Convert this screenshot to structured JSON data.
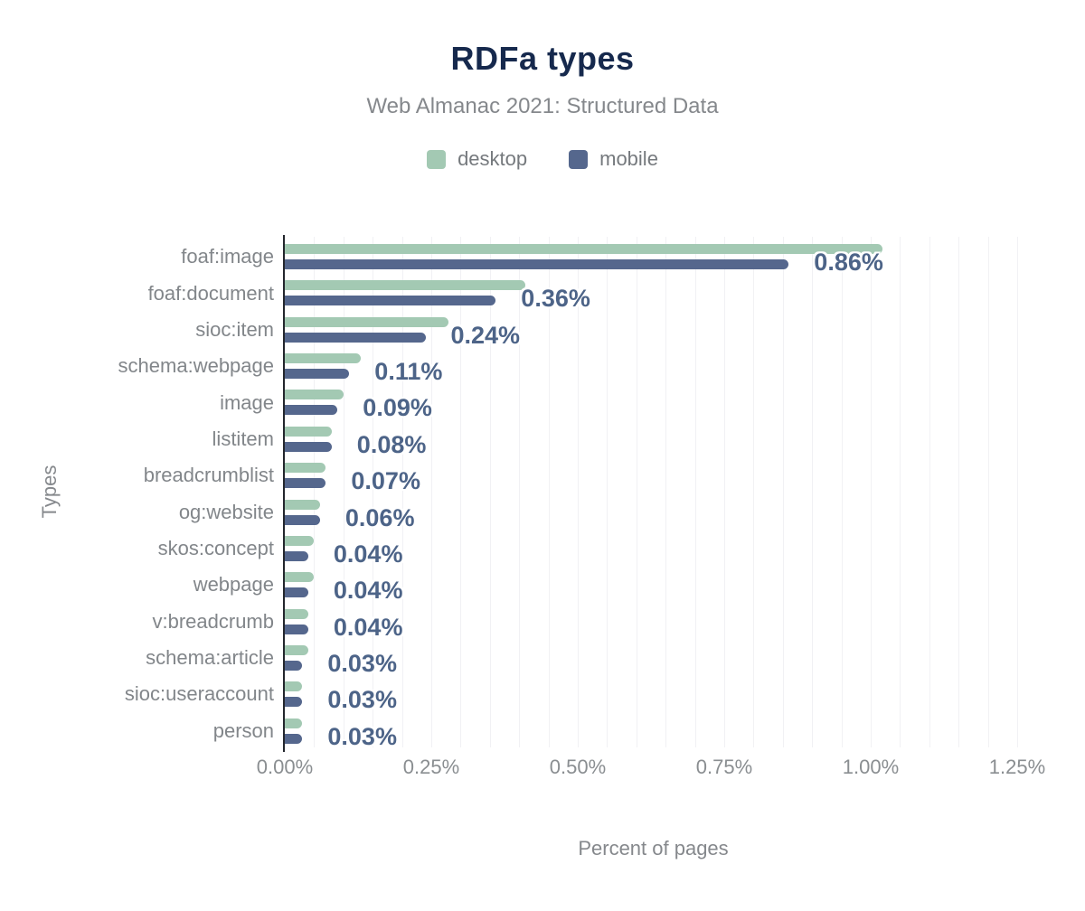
{
  "title": "RDFa types",
  "subtitle": "Web Almanac 2021: Structured Data",
  "legend": {
    "items": [
      {
        "name": "desktop-swatch",
        "label": "desktop",
        "color": "#a3c9b3"
      },
      {
        "name": "mobile-swatch",
        "label": "mobile",
        "color": "#55678d"
      }
    ]
  },
  "axes": {
    "x_title": "Percent of pages",
    "y_title": "Types"
  },
  "chart_data": {
    "type": "bar",
    "orientation": "horizontal",
    "title": "RDFa types",
    "subtitle": "Web Almanac 2021: Structured Data",
    "xlabel": "Percent of pages",
    "ylabel": "Types",
    "legend_position": "top",
    "grid": "vertical, minor step 0.05%",
    "categories": [
      "foaf:image",
      "foaf:document",
      "sioc:item",
      "schema:webpage",
      "image",
      "listitem",
      "breadcrumblist",
      "og:website",
      "skos:concept",
      "webpage",
      "v:breadcrumb",
      "schema:article",
      "sioc:useraccount",
      "person"
    ],
    "series": [
      {
        "name": "desktop",
        "color": "#a3c9b3",
        "values": [
          1.02,
          0.41,
          0.28,
          0.13,
          0.1,
          0.08,
          0.07,
          0.06,
          0.05,
          0.05,
          0.04,
          0.04,
          0.03,
          0.03
        ]
      },
      {
        "name": "mobile",
        "color": "#55678d",
        "values": [
          0.86,
          0.36,
          0.24,
          0.11,
          0.09,
          0.08,
          0.07,
          0.06,
          0.04,
          0.04,
          0.04,
          0.03,
          0.03,
          0.03
        ]
      }
    ],
    "value_labels": [
      "0.86%",
      "0.36%",
      "0.24%",
      "0.11%",
      "0.09%",
      "0.08%",
      "0.07%",
      "0.06%",
      "0.04%",
      "0.04%",
      "0.04%",
      "0.03%",
      "0.03%",
      "0.03%"
    ],
    "value_labels_series": "mobile",
    "x_tick_labels": [
      "0.00%",
      "0.25%",
      "0.50%",
      "0.75%",
      "1.00%",
      "1.25%"
    ],
    "x_tick_values": [
      0,
      0.25,
      0.5,
      0.75,
      1.0,
      1.25
    ],
    "xlim": [
      0,
      1.2577
    ],
    "minor_grid_step": 0.05
  }
}
